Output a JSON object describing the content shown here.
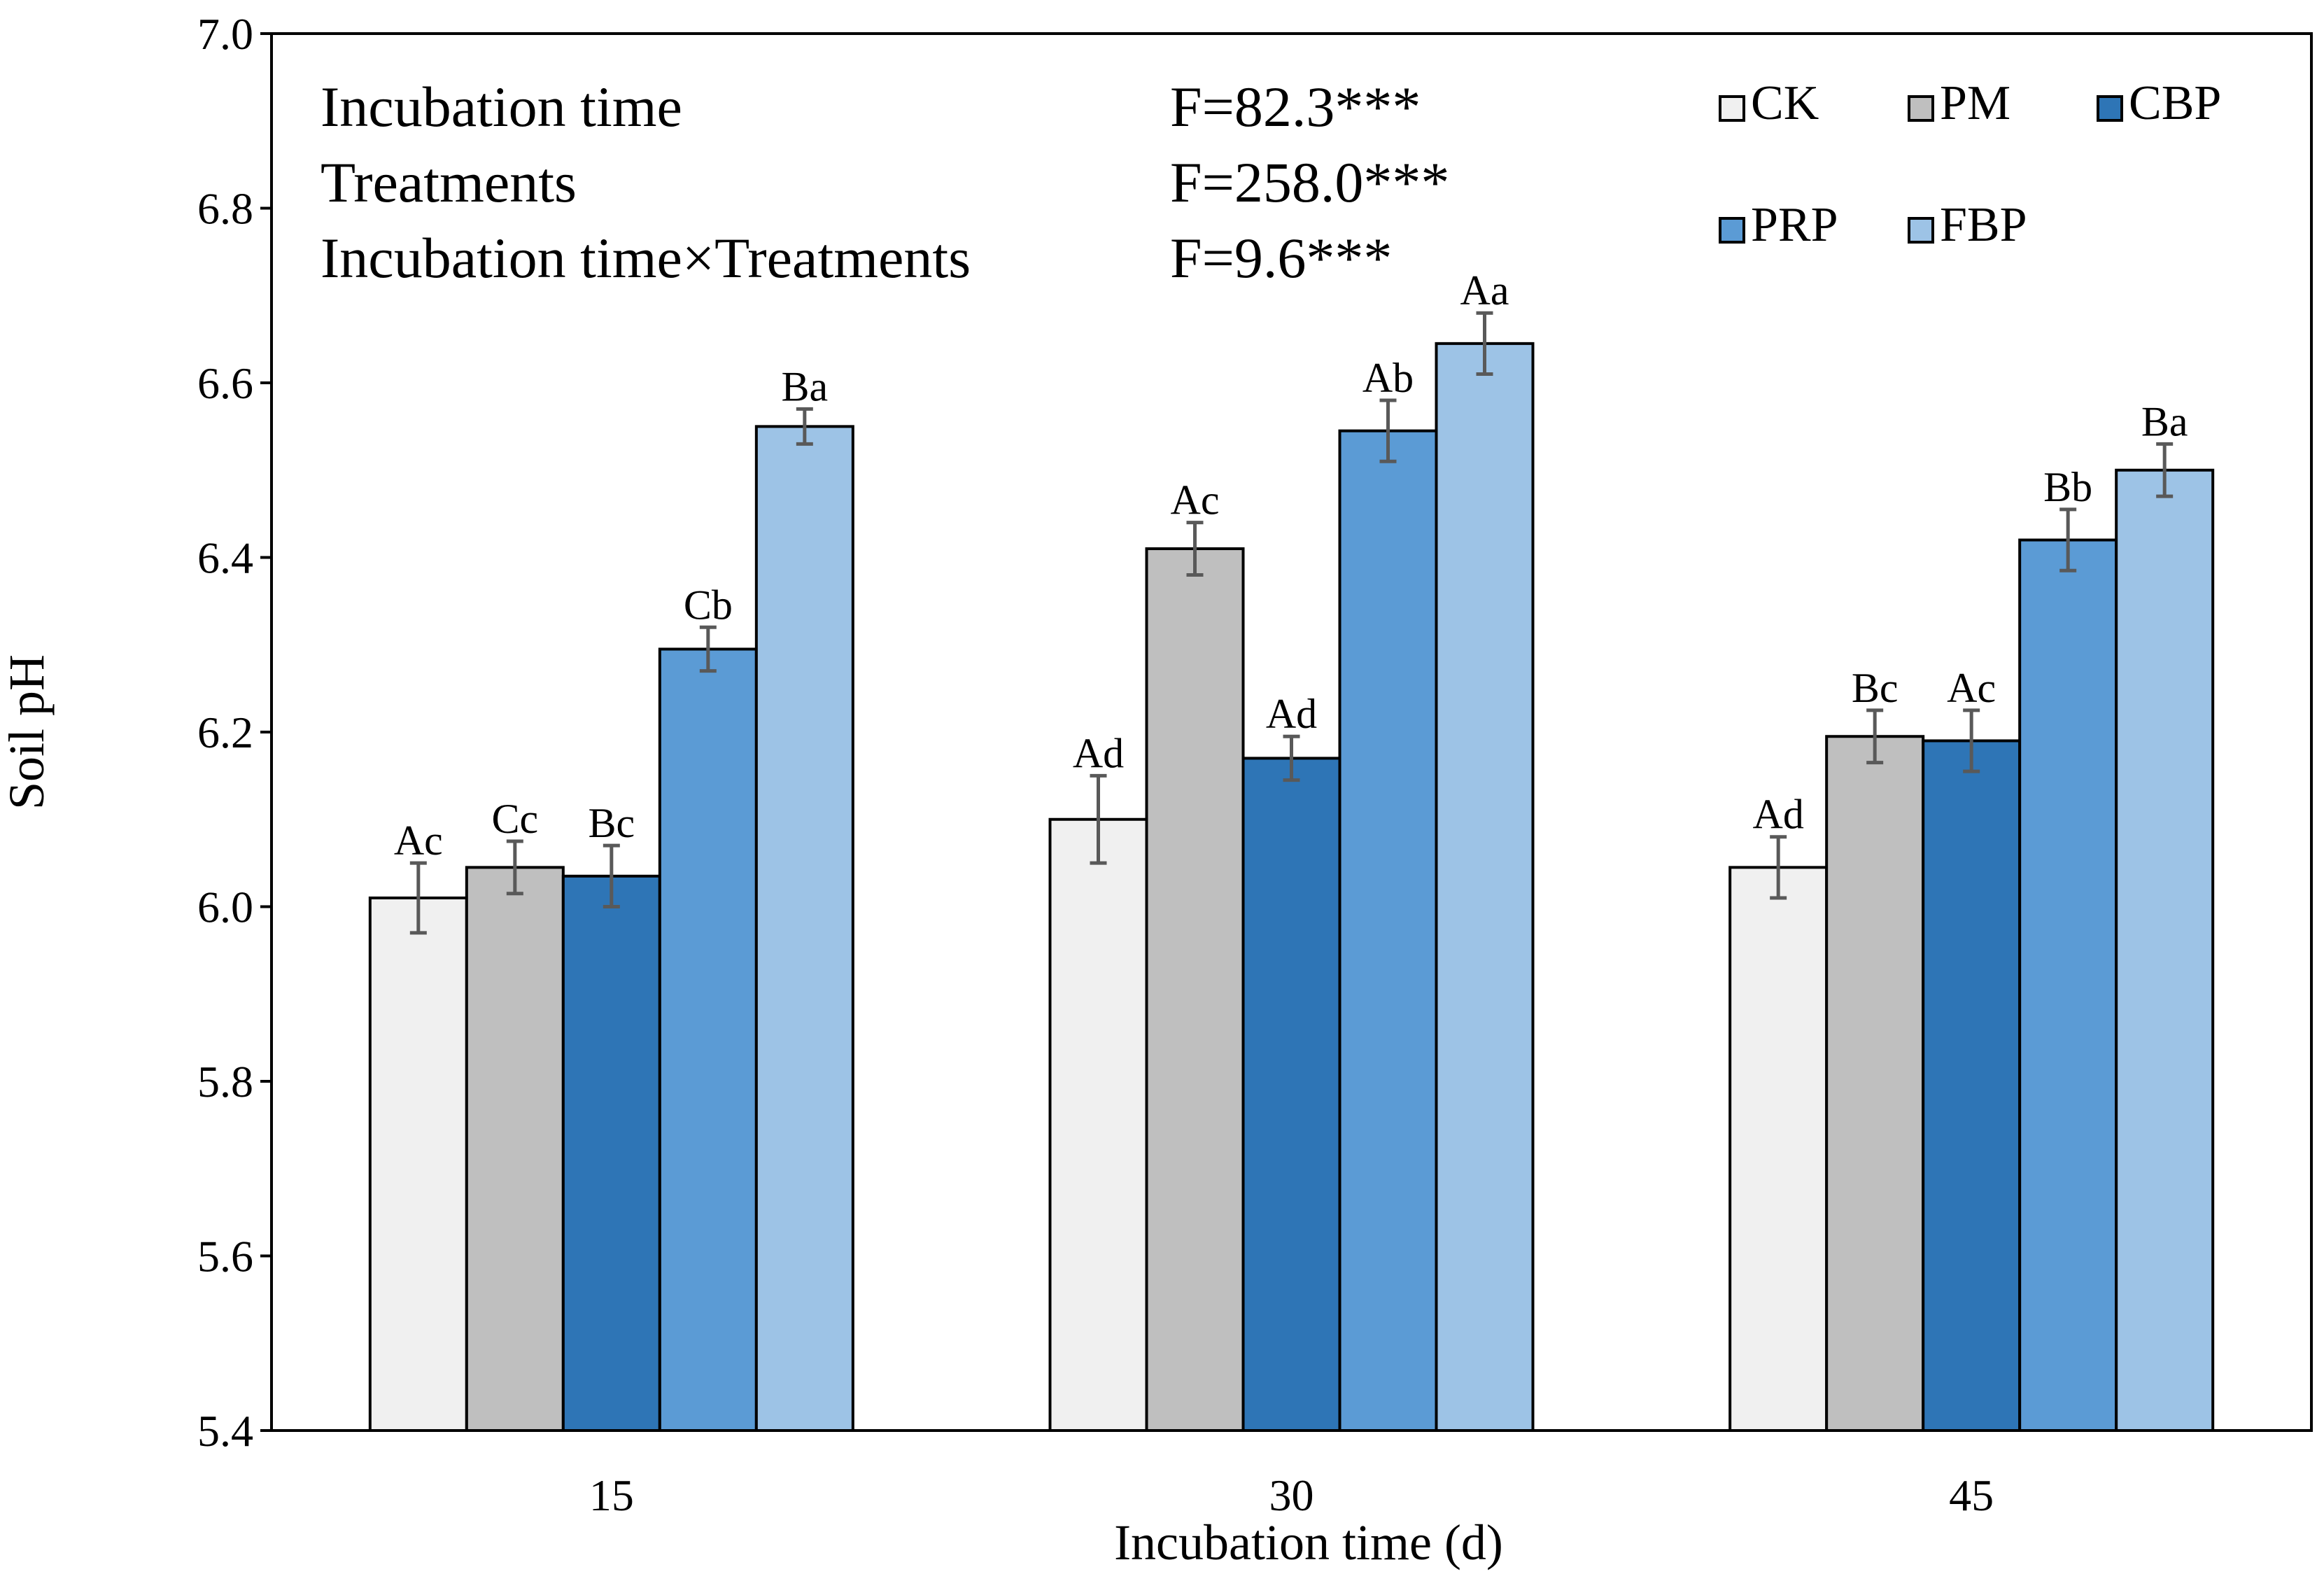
{
  "chart_data": {
    "type": "bar",
    "xlabel": "Incubation time (d)",
    "ylabel": "Soil pH",
    "ylim": [
      5.4,
      7.0
    ],
    "yticks": [
      "5.4",
      "5.6",
      "5.8",
      "6.0",
      "6.2",
      "6.4",
      "6.6",
      "6.8",
      "7.0"
    ],
    "categories": [
      "15",
      "30",
      "45"
    ],
    "legend_position": "top-right",
    "grid": false,
    "series": [
      {
        "name": "CK",
        "color": "#f0f0f0",
        "values": [
          6.01,
          6.1,
          6.045
        ],
        "errors": [
          0.04,
          0.05,
          0.035
        ],
        "labels": [
          "Ac",
          "Ad",
          "Ad"
        ]
      },
      {
        "name": "PM",
        "color": "#bfbfbf",
        "values": [
          6.045,
          6.41,
          6.195
        ],
        "errors": [
          0.03,
          0.03,
          0.03
        ],
        "labels": [
          "Cc",
          "Ac",
          "Bc"
        ]
      },
      {
        "name": "CBP",
        "color": "#2e75b6",
        "values": [
          6.035,
          6.17,
          6.19
        ],
        "errors": [
          0.035,
          0.025,
          0.035
        ],
        "labels": [
          "Bc",
          "Ad",
          "Ac"
        ]
      },
      {
        "name": "PRP",
        "color": "#5b9bd5",
        "values": [
          6.295,
          6.545,
          6.42
        ],
        "errors": [
          0.025,
          0.035,
          0.035
        ],
        "labels": [
          "Cb",
          "Ab",
          "Bb"
        ]
      },
      {
        "name": "FBP",
        "color": "#9dc3e6",
        "values": [
          6.55,
          6.645,
          6.5
        ],
        "errors": [
          0.02,
          0.035,
          0.03
        ],
        "labels": [
          "Ba",
          "Aa",
          "Ba"
        ]
      }
    ],
    "annotations": [
      {
        "label": "Incubation time",
        "stat": "F=82.3***"
      },
      {
        "label": "Treatments",
        "stat": "F=258.0***"
      },
      {
        "label": "Incubation time×Treatments",
        "stat": "F=9.6***"
      }
    ]
  }
}
